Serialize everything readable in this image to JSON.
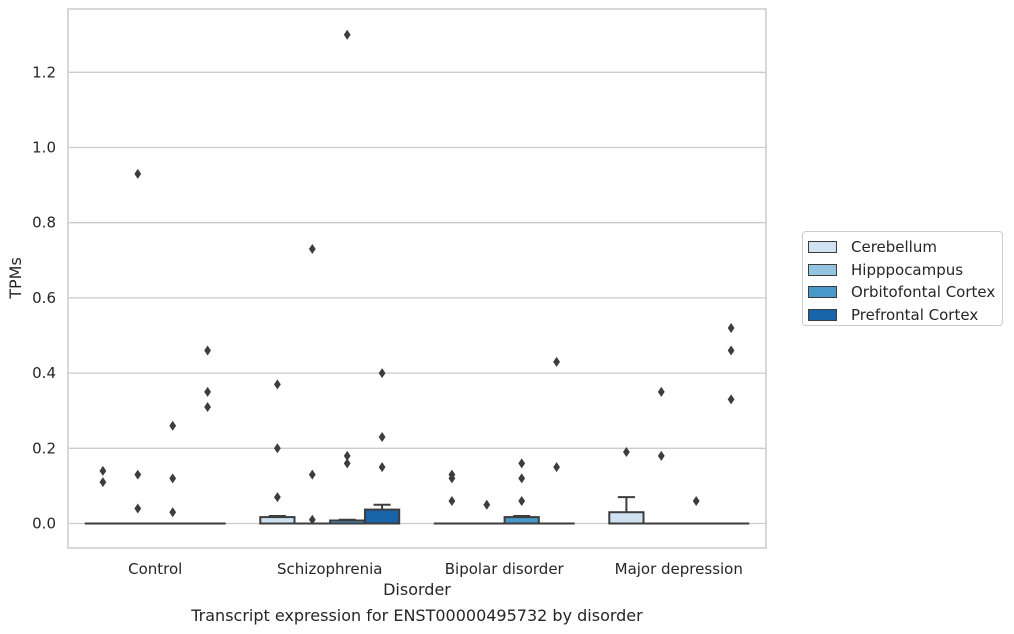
{
  "caption": "Transcript expression for ENST00000495732 by disorder",
  "colors": {
    "Cerebellum": "#d0e1f2",
    "Hipppocampus": "#94c4df",
    "Orbitofontal Cortex": "#4a98c9",
    "Prefrontal Cortex": "#1764ab",
    "outline": "#3d3d3d",
    "grid": "#cccccc"
  },
  "chart_data": {
    "type": "box",
    "xlabel": "Disorder",
    "ylabel": "TPMs",
    "ylim": [
      -0.065,
      1.38
    ],
    "yticks": [
      "0.0",
      "0.2",
      "0.4",
      "0.6",
      "0.8",
      "1.0",
      "1.2"
    ],
    "grid": "horizontal",
    "legend_position": "right",
    "categories": [
      "Control",
      "Schizophrenia",
      "Bipolar disorder",
      "Major depression"
    ],
    "series": [
      {
        "name": "Cerebellum",
        "boxes": [
          {
            "q1": 0,
            "median": 0,
            "q3": 0,
            "whisker_low": 0,
            "whisker_high": 0,
            "outliers": [
              0.14,
              0.11
            ]
          },
          {
            "q1": 0,
            "median": 0,
            "q3": 0.017,
            "whisker_low": 0,
            "whisker_high": 0.02,
            "outliers": [
              0.37,
              0.2,
              0.07
            ]
          },
          {
            "q1": 0,
            "median": 0,
            "q3": 0,
            "whisker_low": 0,
            "whisker_high": 0,
            "outliers": [
              0.13,
              0.12,
              0.06
            ]
          },
          {
            "q1": 0,
            "median": 0,
            "q3": 0.03,
            "whisker_low": 0,
            "whisker_high": 0.07,
            "outliers": [
              0.19
            ]
          }
        ]
      },
      {
        "name": "Hipppocampus",
        "boxes": [
          {
            "q1": 0,
            "median": 0,
            "q3": 0,
            "whisker_low": 0,
            "whisker_high": 0,
            "outliers": [
              0.93,
              0.13,
              0.04
            ]
          },
          {
            "q1": 0,
            "median": 0,
            "q3": 0,
            "whisker_low": 0,
            "whisker_high": 0,
            "outliers": [
              0.73,
              0.13,
              0.01
            ]
          },
          {
            "q1": 0,
            "median": 0,
            "q3": 0,
            "whisker_low": 0,
            "whisker_high": 0,
            "outliers": [
              0.05
            ]
          },
          {
            "q1": 0,
            "median": 0,
            "q3": 0,
            "whisker_low": 0,
            "whisker_high": 0,
            "outliers": [
              0.35,
              0.18
            ]
          }
        ]
      },
      {
        "name": "Orbitofontal Cortex",
        "boxes": [
          {
            "q1": 0,
            "median": 0,
            "q3": 0,
            "whisker_low": 0,
            "whisker_high": 0,
            "outliers": [
              0.26,
              0.12,
              0.03
            ]
          },
          {
            "q1": 0,
            "median": 0,
            "q3": 0.008,
            "whisker_low": 0,
            "whisker_high": 0.01,
            "outliers": [
              1.3,
              0.18,
              0.16
            ]
          },
          {
            "q1": 0,
            "median": 0,
            "q3": 0.017,
            "whisker_low": 0,
            "whisker_high": 0.02,
            "outliers": [
              0.16,
              0.12,
              0.06
            ]
          },
          {
            "q1": 0,
            "median": 0,
            "q3": 0,
            "whisker_low": 0,
            "whisker_high": 0,
            "outliers": [
              0.06
            ]
          }
        ]
      },
      {
        "name": "Prefrontal Cortex",
        "boxes": [
          {
            "q1": 0,
            "median": 0,
            "q3": 0,
            "whisker_low": 0,
            "whisker_high": 0,
            "outliers": [
              0.46,
              0.35,
              0.31
            ]
          },
          {
            "q1": 0,
            "median": 0,
            "q3": 0.037,
            "whisker_low": 0,
            "whisker_high": 0.05,
            "outliers": [
              0.4,
              0.23,
              0.15
            ]
          },
          {
            "q1": 0,
            "median": 0,
            "q3": 0,
            "whisker_low": 0,
            "whisker_high": 0,
            "outliers": [
              0.43,
              0.15
            ]
          },
          {
            "q1": 0,
            "median": 0,
            "q3": 0,
            "whisker_low": 0,
            "whisker_high": 0,
            "outliers": [
              0.52,
              0.46,
              0.33
            ]
          }
        ]
      }
    ]
  }
}
